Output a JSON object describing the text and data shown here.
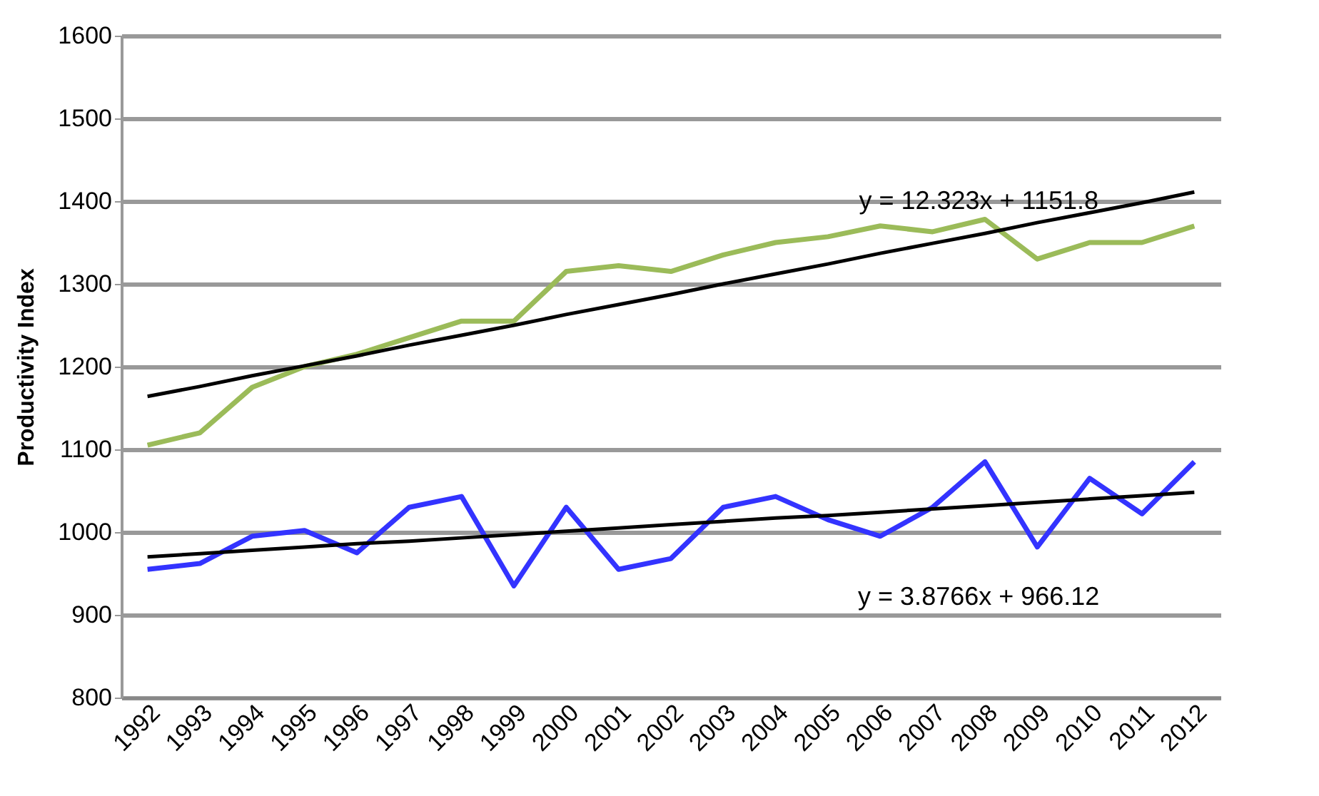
{
  "chart_data": {
    "type": "line",
    "ylabel": "Productivity Index",
    "categories": [
      "1992",
      "1993",
      "1994",
      "1995",
      "1996",
      "1997",
      "1998",
      "1999",
      "2000",
      "2001",
      "2002",
      "2003",
      "2004",
      "2005",
      "2006",
      "2007",
      "2008",
      "2009",
      "2010",
      "2011",
      "2012"
    ],
    "series": [
      {
        "color": "#9bbb59",
        "values": [
          1105,
          1120,
          1175,
          1200,
          1215,
          1235,
          1255,
          1255,
          1315,
          1322,
          1315,
          1335,
          1350,
          1357,
          1370,
          1363,
          1378,
          1330,
          1350,
          1350,
          1370
        ]
      },
      {
        "color": "#3333ff",
        "values": [
          955,
          962,
          995,
          1002,
          975,
          1030,
          1043,
          935,
          1030,
          955,
          968,
          1030,
          1043,
          1015,
          995,
          1030,
          1085,
          982,
          1065,
          1022,
          1085
        ]
      },
      {
        "type": "line",
        "color": "#000000",
        "values": [
          1164,
          1176,
          1189,
          1201,
          1213,
          1226,
          1238,
          1250,
          1263,
          1275,
          1287,
          1300,
          1312,
          1324,
          1337,
          1349,
          1361,
          1374,
          1386,
          1398,
          1411
        ]
      },
      {
        "type": "line",
        "color": "#000000",
        "values": [
          970,
          974,
          978,
          982,
          986,
          989,
          993,
          997,
          1001,
          1005,
          1009,
          1013,
          1017,
          1020,
          1024,
          1028,
          1032,
          1036,
          1040,
          1044,
          1048
        ]
      }
    ],
    "annotations": [
      "y = 12.323x + 1151.8",
      "y = 3.8766x + 966.12"
    ],
    "ylim": [
      800,
      1600
    ],
    "yticks": [
      800,
      900,
      1000,
      1100,
      1200,
      1300,
      1400,
      1500,
      1600
    ],
    "grid": "y",
    "marker": "none",
    "line_style": "solid"
  }
}
